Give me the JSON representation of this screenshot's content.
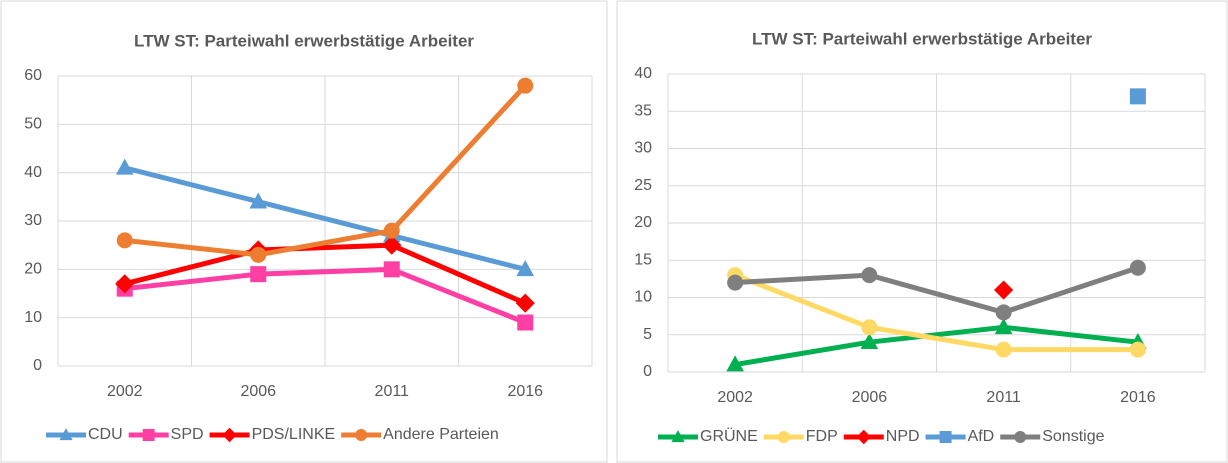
{
  "chart_data": [
    {
      "type": "line",
      "title": "LTW ST: Parteiwahl erwerbstätige Arbeiter",
      "categories": [
        "2002",
        "2006",
        "2011",
        "2016"
      ],
      "series": [
        {
          "name": "CDU",
          "color": "#5b9bd5",
          "marker": "triangle",
          "values": [
            41,
            34,
            27,
            20
          ]
        },
        {
          "name": "SPD",
          "color": "#ff3fa4",
          "marker": "square",
          "values": [
            16,
            19,
            20,
            9
          ]
        },
        {
          "name": "PDS/LINKE",
          "color": "#ff0000",
          "marker": "diamond",
          "values": [
            17,
            24,
            25,
            13
          ]
        },
        {
          "name": "Andere Parteien",
          "color": "#ed7d31",
          "marker": "circle",
          "values": [
            26,
            23,
            28,
            58
          ]
        }
      ],
      "ylim": [
        0,
        60
      ],
      "yticks": [
        0,
        10,
        20,
        30,
        40,
        50,
        60
      ],
      "grid": true,
      "legend": "bottom"
    },
    {
      "type": "line",
      "title": "LTW  ST: Parteiwahl erwerbstätige Arbeiter",
      "categories": [
        "2002",
        "2006",
        "2011",
        "2016"
      ],
      "series": [
        {
          "name": "GRÜNE",
          "color": "#00b050",
          "marker": "triangle",
          "values": [
            1,
            4,
            6,
            4
          ]
        },
        {
          "name": "FDP",
          "color": "#ffd966",
          "marker": "circle",
          "values": [
            13,
            6,
            3,
            3
          ]
        },
        {
          "name": "NPD",
          "color": "#ff0000",
          "marker": "diamond",
          "values": [
            null,
            null,
            11,
            null
          ]
        },
        {
          "name": "AfD",
          "color": "#5b9bd5",
          "marker": "square",
          "values": [
            null,
            null,
            null,
            37
          ]
        },
        {
          "name": "Sonstige",
          "color": "#7f7f7f",
          "marker": "circle",
          "values": [
            12,
            13,
            8,
            14
          ]
        }
      ],
      "ylim": [
        0,
        40
      ],
      "yticks": [
        0,
        5,
        10,
        15,
        20,
        25,
        30,
        35,
        40
      ],
      "grid": true,
      "legend": "bottom"
    }
  ]
}
